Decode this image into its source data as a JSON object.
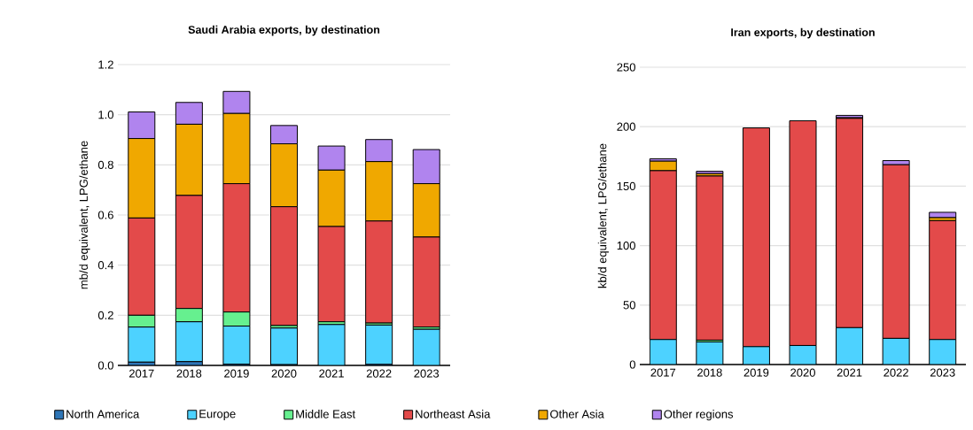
{
  "chart_data": [
    {
      "type": "bar",
      "stacked": true,
      "title": "Saudi Arabia exports, by destination",
      "ylabel": "mb/d equivalent, LPG/ethane",
      "categories": [
        "2017",
        "2018",
        "2019",
        "2020",
        "2021",
        "2022",
        "2023"
      ],
      "series": [
        {
          "name": "North America",
          "color": "#2e75b6",
          "values": [
            0.013,
            0.015,
            0.005,
            0.003,
            null,
            0.004,
            null
          ]
        },
        {
          "name": "Europe",
          "color": "#4dd2ff",
          "values": [
            0.14,
            0.159,
            0.152,
            0.146,
            0.163,
            0.157,
            0.144
          ]
        },
        {
          "name": "Middle East",
          "color": "#66f08f",
          "values": [
            0.047,
            0.053,
            0.056,
            0.01,
            0.011,
            0.008,
            0.009
          ]
        },
        {
          "name": "Northeast Asia",
          "color": "#e34a4a",
          "values": [
            0.388,
            0.451,
            0.512,
            0.474,
            0.38,
            0.407,
            0.359
          ]
        },
        {
          "name": "Other Asia",
          "color": "#f0a800",
          "values": [
            0.317,
            0.284,
            0.28,
            0.251,
            0.225,
            0.237,
            0.213
          ]
        },
        {
          "name": "Other regions",
          "color": "#b084ee",
          "values": [
            0.106,
            0.087,
            0.088,
            0.073,
            0.096,
            0.088,
            0.136
          ]
        }
      ],
      "ylim": [
        0,
        1.2
      ],
      "yticks": [
        {
          "value": 0,
          "label": "0.0"
        },
        0.2,
        0.4,
        0.6,
        0.8,
        {
          "value": 1,
          "label": "1.0"
        },
        1.2
      ],
      "grid": "y",
      "legend": "bottom"
    },
    {
      "type": "bar",
      "stacked": true,
      "title": "Iran exports, by destination",
      "ylabel": "kb/d equivalent, LPG/ethane",
      "categories": [
        "2017",
        "2018",
        "2019",
        "2020",
        "2021",
        "2022",
        "2023"
      ],
      "series": [
        {
          "color": "#2e75b6",
          "values": [
            0,
            0,
            0,
            0,
            0,
            0,
            0
          ]
        },
        {
          "color": "#4dd2ff",
          "values": [
            21,
            19,
            15,
            16,
            31,
            22,
            21
          ]
        },
        {
          "color": "#66f08f",
          "values": [
            0,
            1.5,
            0,
            0,
            0,
            0,
            0
          ]
        },
        {
          "color": "#e34a4a",
          "values": [
            142,
            138,
            184,
            189,
            176,
            146,
            100
          ]
        },
        {
          "color": "#f0a800",
          "values": [
            8,
            2,
            0,
            0,
            0.5,
            null,
            2.5
          ]
        },
        {
          "color": "#b084ee",
          "values": [
            2,
            2,
            null,
            null,
            2,
            3.5,
            4.5
          ]
        }
      ],
      "ylim": [
        0,
        250
      ],
      "yticks": [
        0,
        50,
        100,
        150,
        200,
        250
      ],
      "grid": "y"
    }
  ]
}
